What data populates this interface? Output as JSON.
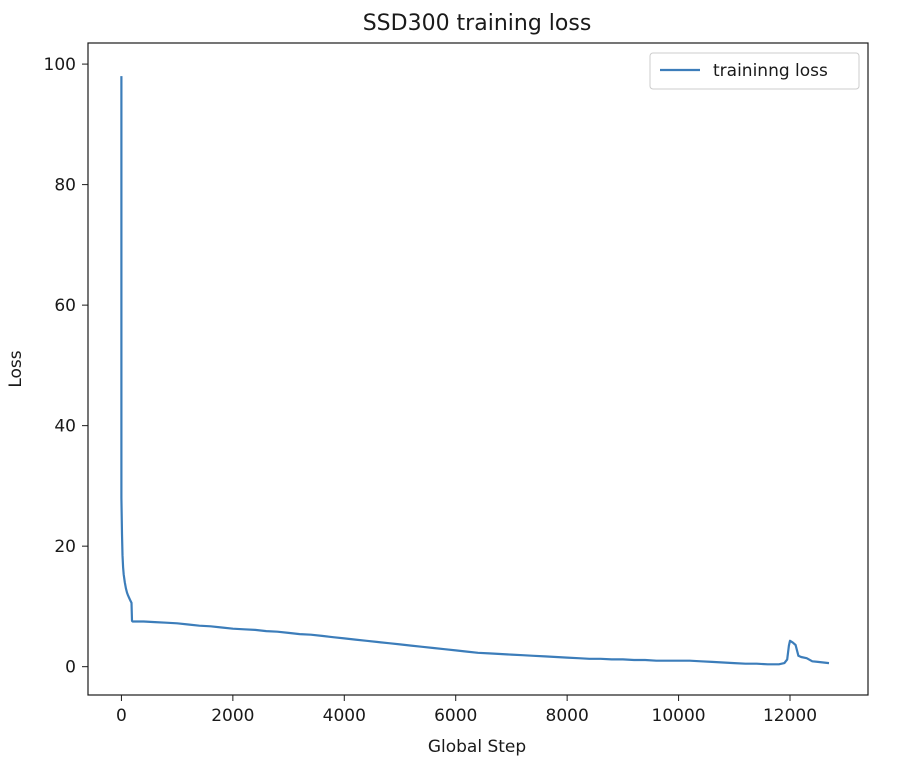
{
  "chart_data": {
    "type": "line",
    "title": "SSD300 training loss",
    "xlabel": "Global Step",
    "ylabel": "Loss",
    "xlim": [
      -600,
      13400
    ],
    "ylim": [
      -4.7,
      103.5
    ],
    "xticks": [
      0,
      2000,
      4000,
      6000,
      8000,
      10000,
      12000
    ],
    "xtick_labels": [
      "0",
      "2000",
      "4000",
      "6000",
      "8000",
      "10000",
      "12000"
    ],
    "yticks": [
      0,
      20,
      40,
      60,
      80,
      100
    ],
    "ytick_labels": [
      "0",
      "20",
      "40",
      "60",
      "80",
      "100"
    ],
    "grid": false,
    "legend": {
      "position": "top-right"
    },
    "series": [
      {
        "name": "traininng loss",
        "color": "#3c7dba",
        "x": [
          0,
          0,
          5,
          10,
          20,
          30,
          40,
          60,
          80,
          100,
          120,
          140,
          160,
          170,
          180,
          190,
          200,
          400,
          600,
          800,
          1000,
          1200,
          1400,
          1600,
          1800,
          2000,
          2200,
          2400,
          2600,
          2800,
          3000,
          3200,
          3400,
          3600,
          3800,
          4000,
          4200,
          4400,
          4600,
          4800,
          5000,
          5200,
          5400,
          5600,
          5800,
          6000,
          6200,
          6400,
          6600,
          6800,
          7000,
          7200,
          7400,
          7600,
          7800,
          8000,
          8200,
          8400,
          8600,
          8800,
          9000,
          9200,
          9400,
          9600,
          9800,
          10000,
          10200,
          10400,
          10600,
          10800,
          11000,
          11200,
          11400,
          11600,
          11800,
          11900,
          11950,
          11980,
          12000,
          12050,
          12100,
          12150,
          12200,
          12300,
          12400,
          12500,
          12600,
          12700
        ],
        "y": [
          98,
          28,
          25,
          22,
          18.5,
          16.5,
          15.3,
          14.0,
          13.0,
          12.3,
          11.8,
          11.4,
          11.0,
          10.8,
          10.6,
          7.6,
          7.5,
          7.5,
          7.4,
          7.3,
          7.2,
          7.0,
          6.8,
          6.7,
          6.5,
          6.3,
          6.2,
          6.1,
          5.9,
          5.8,
          5.6,
          5.4,
          5.3,
          5.1,
          4.9,
          4.7,
          4.5,
          4.3,
          4.1,
          3.9,
          3.7,
          3.5,
          3.3,
          3.1,
          2.9,
          2.7,
          2.5,
          2.3,
          2.2,
          2.1,
          2.0,
          1.9,
          1.8,
          1.7,
          1.6,
          1.5,
          1.4,
          1.3,
          1.3,
          1.2,
          1.2,
          1.1,
          1.1,
          1.0,
          1.0,
          1.0,
          1.0,
          0.9,
          0.8,
          0.7,
          0.6,
          0.5,
          0.5,
          0.4,
          0.4,
          0.6,
          1.2,
          3.5,
          4.3,
          4.0,
          3.6,
          1.8,
          1.6,
          1.4,
          0.9,
          0.8,
          0.7,
          0.6
        ]
      }
    ]
  }
}
